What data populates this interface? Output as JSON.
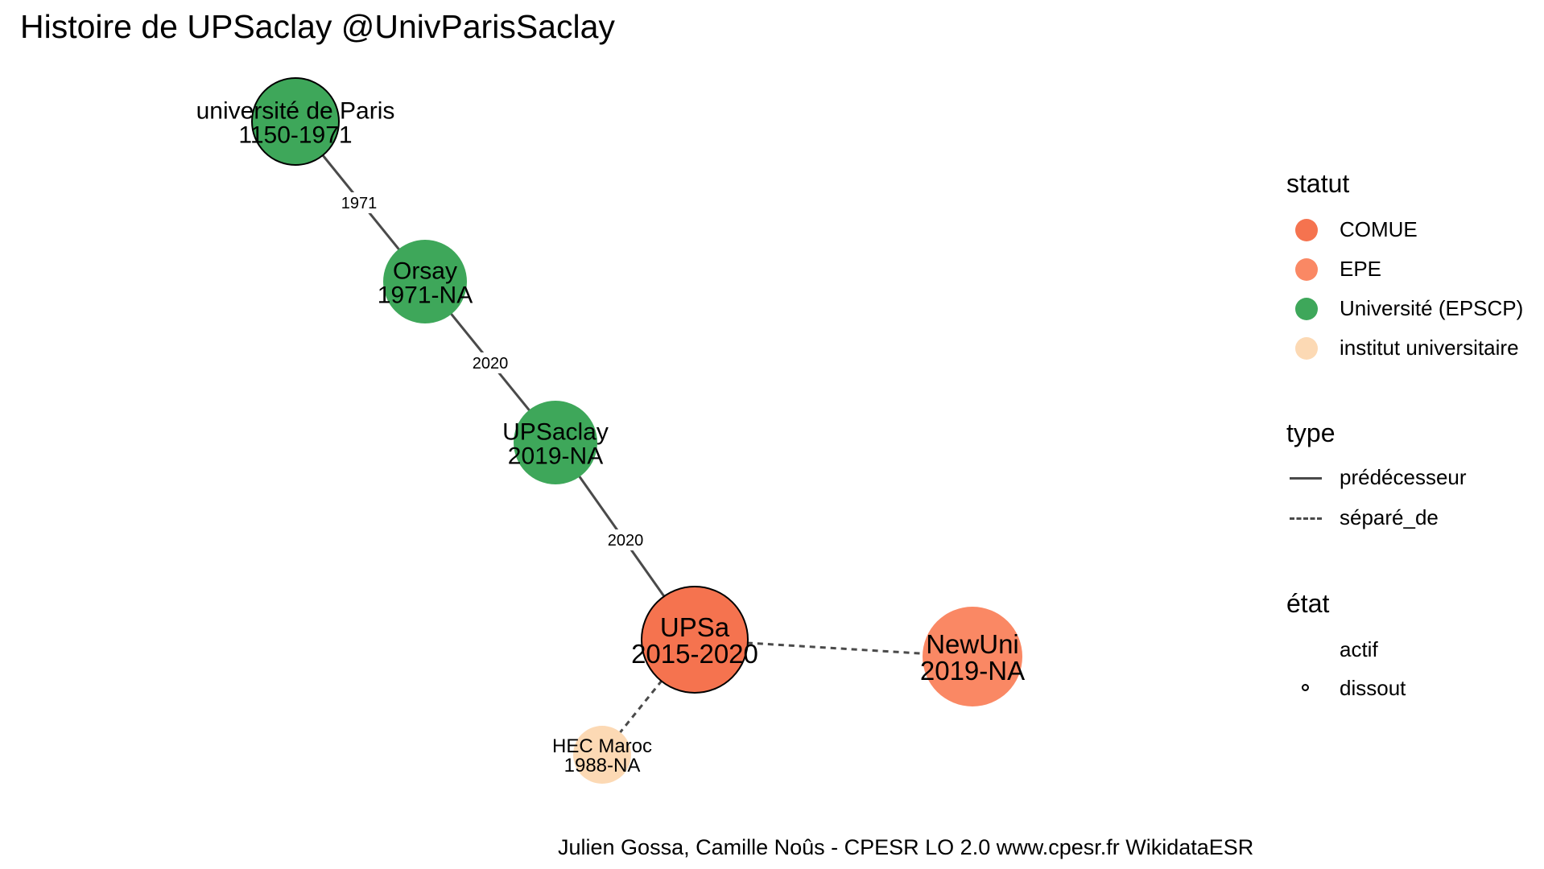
{
  "title": "Histoire de UPSaclay @UnivParisSaclay",
  "caption": "Julien Gossa, Camille Noûs - CPESR LO 2.0 www.cpesr.fr WikidataESR",
  "colors": {
    "COMUE": "#F5734F",
    "EPE": "#FA8864",
    "Université (EPSCP)": "#3EA75A",
    "institut universitaire": "#FCD9B4",
    "edge": "#4a4a4a"
  },
  "nodes": [
    {
      "id": "paris",
      "name": "université de Paris",
      "years": "1150-1971",
      "statut": "Université (EPSCP)",
      "etat": "dissout"
    },
    {
      "id": "orsay",
      "name": "Orsay",
      "years": "1971-NA",
      "statut": "Université (EPSCP)",
      "etat": "actif"
    },
    {
      "id": "upsaclay",
      "name": "UPSaclay",
      "years": "2019-NA",
      "statut": "Université (EPSCP)",
      "etat": "actif"
    },
    {
      "id": "upsa",
      "name": "UPSa",
      "years": "2015-2020",
      "statut": "COMUE",
      "etat": "dissout"
    },
    {
      "id": "newuni",
      "name": "NewUni",
      "years": "2019-NA",
      "statut": "EPE",
      "etat": "actif"
    },
    {
      "id": "hec",
      "name": "HEC Maroc",
      "years": "1988-NA",
      "statut": "institut universitaire",
      "etat": "actif"
    }
  ],
  "edges": [
    {
      "from": "paris",
      "to": "orsay",
      "type": "prédécesseur",
      "label": "1971"
    },
    {
      "from": "orsay",
      "to": "upsaclay",
      "type": "prédécesseur",
      "label": "2020"
    },
    {
      "from": "upsaclay",
      "to": "upsa",
      "type": "prédécesseur",
      "label": "2020"
    },
    {
      "from": "upsa",
      "to": "newuni",
      "type": "séparé_de",
      "label": ""
    },
    {
      "from": "upsa",
      "to": "hec",
      "type": "séparé_de",
      "label": ""
    }
  ],
  "legend": {
    "statut": {
      "title": "statut",
      "items": [
        {
          "label": "COMUE",
          "key": "COMUE"
        },
        {
          "label": "EPE",
          "key": "EPE"
        },
        {
          "label": "Université (EPSCP)",
          "key": "Université (EPSCP)"
        },
        {
          "label": "institut universitaire",
          "key": "institut universitaire"
        }
      ]
    },
    "type": {
      "title": "type",
      "items": [
        {
          "label": "prédécesseur",
          "style": "solid"
        },
        {
          "label": "séparé_de",
          "style": "dashed"
        }
      ]
    },
    "etat": {
      "title": "état",
      "items": [
        {
          "label": "actif",
          "ring": false
        },
        {
          "label": "dissout",
          "ring": true
        }
      ]
    }
  }
}
